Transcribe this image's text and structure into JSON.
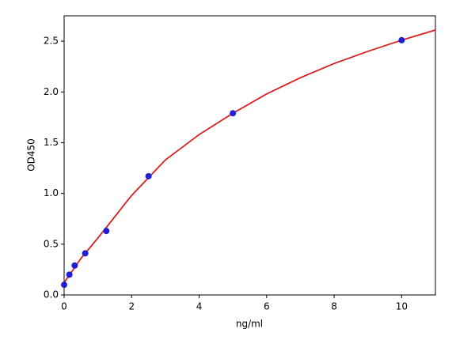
{
  "chart_data": {
    "type": "scatter",
    "xlabel": "ng/ml",
    "ylabel": "OD450",
    "xlim": [
      0,
      11
    ],
    "xticks": [
      0,
      2,
      4,
      6,
      8,
      10
    ],
    "ylim": [
      0,
      2.75
    ],
    "yticks": [
      {
        "value": 0,
        "label": "0.0"
      },
      {
        "value": 0.5,
        "label": "0.5"
      },
      {
        "value": 1,
        "label": "1.0"
      },
      {
        "value": 1.5,
        "label": "1.5"
      },
      {
        "value": 2,
        "label": "2.0"
      },
      {
        "value": 2.5,
        "label": "2.5"
      }
    ],
    "series": [
      {
        "style": "line",
        "color": "#d62020",
        "x": [
          0,
          0.5,
          1,
          2,
          3,
          4,
          5,
          6,
          7,
          8,
          9,
          10,
          11
        ],
        "values": [
          0.12,
          0.36,
          0.56,
          0.98,
          1.33,
          1.58,
          1.79,
          1.98,
          2.14,
          2.28,
          2.4,
          2.51,
          2.61
        ]
      },
      {
        "style": "marker",
        "color": "#1f1fd6",
        "x": [
          0,
          0.156,
          0.3125,
          0.625,
          1.25,
          2.5,
          5,
          10
        ],
        "values": [
          0.1,
          0.2,
          0.29,
          0.41,
          0.63,
          1.17,
          1.79,
          2.51
        ]
      }
    ]
  }
}
